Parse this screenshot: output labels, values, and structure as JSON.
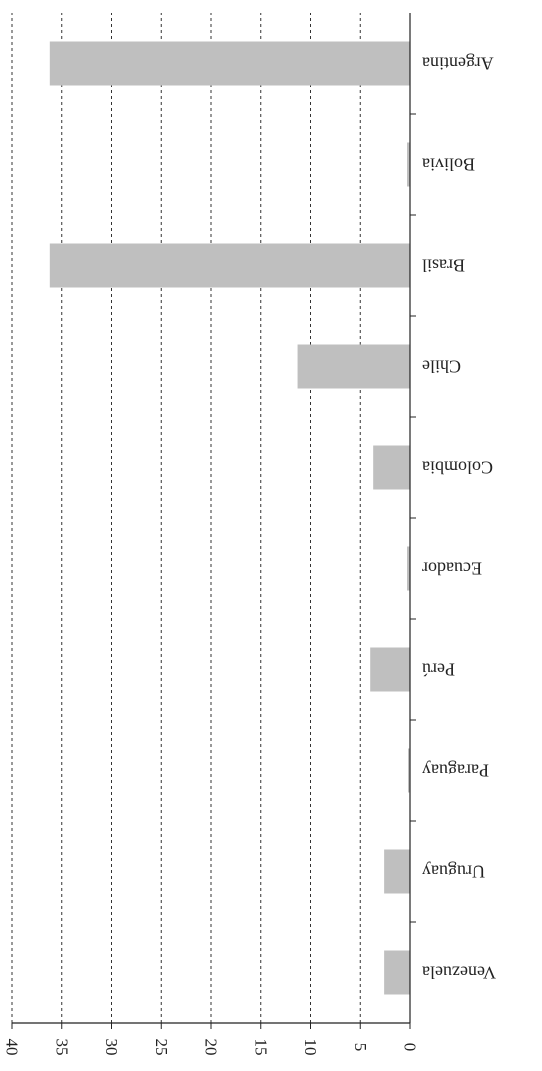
{
  "chart_data": {
    "type": "bar",
    "orientation": "horizontal",
    "rotated_180": true,
    "categories": [
      "Argentina",
      "Bolivia",
      "Brasil",
      "Chile",
      "Colombia",
      "Ecuador",
      "Perú",
      "Paraguay",
      "Uruguay",
      "Venezuela"
    ],
    "values": [
      36.2,
      0.3,
      36.2,
      11.3,
      3.7,
      0.3,
      4.0,
      0.2,
      2.6,
      2.6
    ],
    "xlim": [
      0,
      40
    ],
    "ticks": [
      0,
      5,
      10,
      15,
      20,
      25,
      30,
      35,
      40
    ],
    "grid": true,
    "bar_color": "#bfbfbf",
    "grid_color": "#333333"
  }
}
